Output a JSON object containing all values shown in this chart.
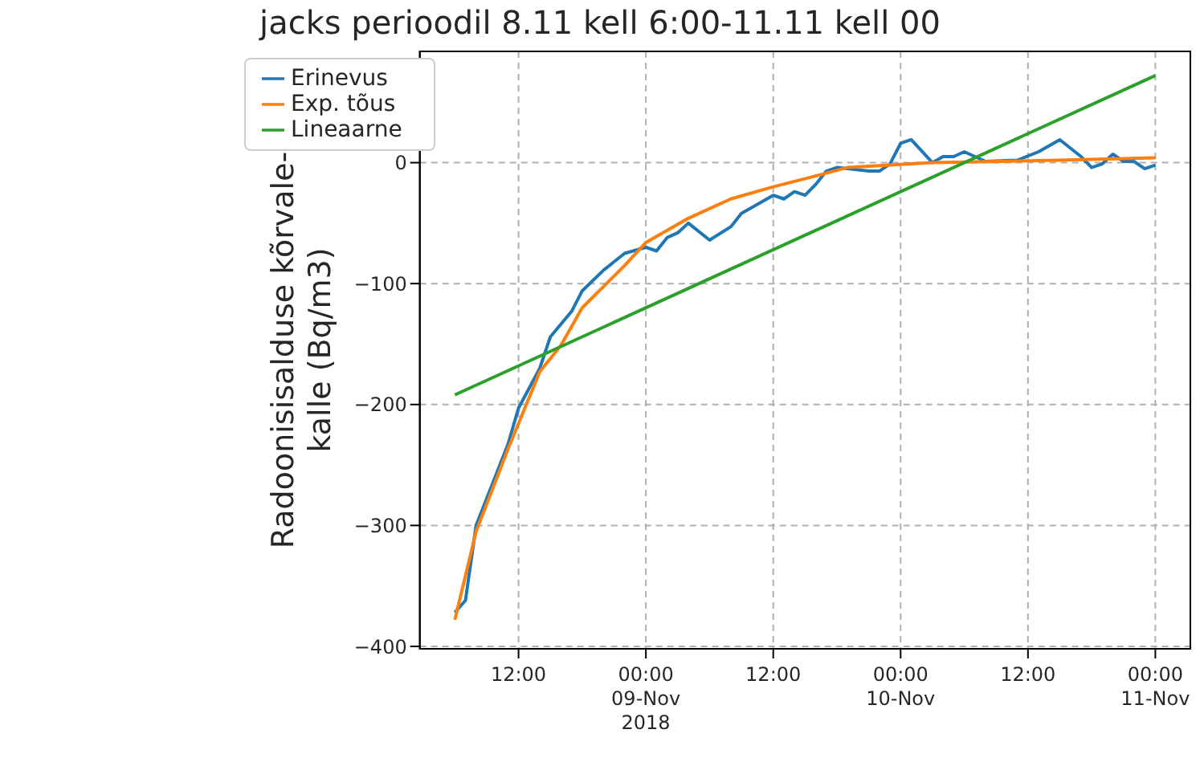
{
  "chart_data": {
    "type": "line",
    "title": "jacks perioodil 8.11 kell 6:00-11.11 kell 00",
    "ylabel": "Radoonisisalduse kõrvale-\nkalle (Bq/m3)",
    "xlim": [
      "2018-11-08T02:42",
      "2018-11-11T03:18"
    ],
    "xticks": [
      {
        "value": "2018-11-08T12:00",
        "label": "12:00"
      },
      {
        "value": "2018-11-09T00:00",
        "label": "00:00\n09-Nov\n2018"
      },
      {
        "value": "2018-11-09T12:00",
        "label": "12:00"
      },
      {
        "value": "2018-11-10T00:00",
        "label": "00:00\n10-Nov"
      },
      {
        "value": "2018-11-10T12:00",
        "label": "12:00"
      },
      {
        "value": "2018-11-11T00:00",
        "label": "00:00\n11-Nov"
      }
    ],
    "ylim": [
      -402,
      92
    ],
    "yticks": [
      -400,
      -300,
      -200,
      -100,
      0
    ],
    "grid": true,
    "legend": "top left",
    "line_style": "solid",
    "marker": "none",
    "series": [
      {
        "name": "Erinevus",
        "color": "#1f77b4",
        "x": [
          "2018-11-08T06:00",
          "2018-11-08T07:00",
          "2018-11-08T08:00",
          "2018-11-08T11:00",
          "2018-11-08T12:00",
          "2018-11-08T14:00",
          "2018-11-08T15:00",
          "2018-11-08T17:00",
          "2018-11-08T18:00",
          "2018-11-08T20:00",
          "2018-11-08T21:00",
          "2018-11-08T22:00",
          "2018-11-09T00:00",
          "2018-11-09T01:00",
          "2018-11-09T02:00",
          "2018-11-09T03:00",
          "2018-11-09T04:00",
          "2018-11-09T06:00",
          "2018-11-09T08:00",
          "2018-11-09T09:00",
          "2018-11-09T12:00",
          "2018-11-09T13:00",
          "2018-11-09T14:00",
          "2018-11-09T15:00",
          "2018-11-09T16:00",
          "2018-11-09T17:00",
          "2018-11-09T18:00",
          "2018-11-09T21:00",
          "2018-11-09T22:00",
          "2018-11-09T23:00",
          "2018-11-10T00:00",
          "2018-11-10T01:00",
          "2018-11-10T03:00",
          "2018-11-10T04:00",
          "2018-11-10T05:00",
          "2018-11-10T06:00",
          "2018-11-10T07:00",
          "2018-11-10T08:00",
          "2018-11-10T11:00",
          "2018-11-10T13:00",
          "2018-11-10T15:00",
          "2018-11-10T17:00",
          "2018-11-10T18:00",
          "2018-11-10T19:00",
          "2018-11-10T20:00",
          "2018-11-10T21:00",
          "2018-11-10T22:00",
          "2018-11-10T23:00",
          "2018-11-11T00:00"
        ],
        "values": [
          -372,
          -362,
          -300,
          -233,
          -203,
          -170,
          -144,
          -123,
          -106,
          -89,
          -82,
          -75,
          -70,
          -73,
          -62,
          -58,
          -50,
          -64,
          -53,
          -42,
          -27,
          -30,
          -24,
          -27,
          -18,
          -7,
          -4,
          -7,
          -7,
          -1,
          16,
          19,
          0,
          5,
          5,
          9,
          5,
          1,
          2,
          9,
          19,
          5,
          -4,
          -1,
          7,
          1,
          1,
          -5,
          -2
        ]
      },
      {
        "name": "Exp. tõus",
        "color": "#ff7f0e",
        "x": [
          "2018-11-08T06:00",
          "2018-11-08T08:00",
          "2018-11-08T11:00",
          "2018-11-08T14:00",
          "2018-11-08T16:00",
          "2018-11-08T18:00",
          "2018-11-08T22:00",
          "2018-11-09T00:00",
          "2018-11-09T04:00",
          "2018-11-09T08:00",
          "2018-11-09T12:00",
          "2018-11-09T16:00",
          "2018-11-09T19:00",
          "2018-11-10T03:00",
          "2018-11-10T15:00",
          "2018-11-11T00:00"
        ],
        "values": [
          -378,
          -305,
          -237,
          -173,
          -151,
          -120,
          -85,
          -66,
          -46,
          -30,
          -20,
          -11,
          -4,
          0,
          2,
          4
        ]
      },
      {
        "name": "Lineaarne",
        "color": "#2ca02c",
        "x": [
          "2018-11-08T06:00",
          "2018-11-11T00:00"
        ],
        "values": [
          -192,
          72
        ]
      }
    ]
  }
}
